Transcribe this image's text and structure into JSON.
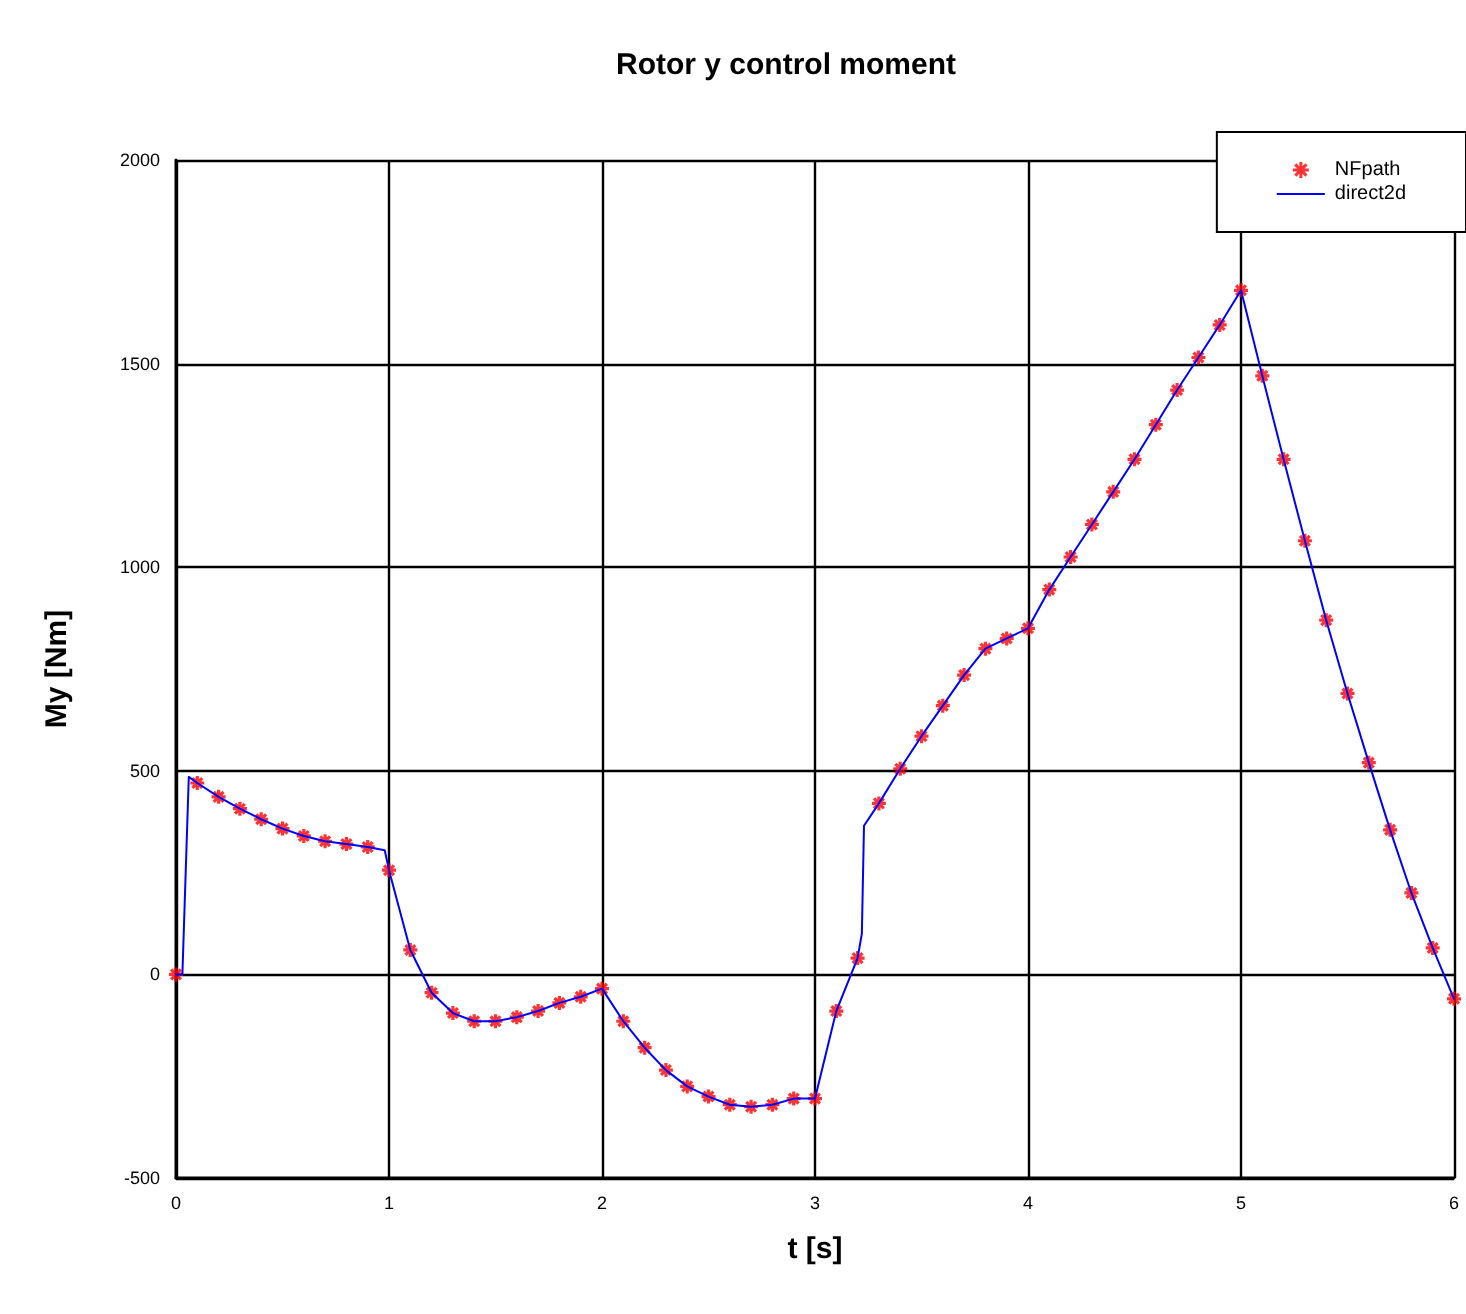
{
  "chart_data": {
    "type": "line",
    "title": "Rotor y control moment",
    "xlabel": "t [s]",
    "ylabel": "My [Nm]",
    "xlim": [
      0,
      6
    ],
    "xticks": [
      0,
      1,
      2,
      3,
      4,
      5,
      6
    ],
    "ylim": [
      -500,
      2000
    ],
    "yticks": [
      -500,
      0,
      500,
      1000,
      1500,
      2000
    ],
    "grid": true,
    "legend": "top right",
    "series": [
      {
        "name": "NFpath",
        "type": "scatter",
        "marker": "cross",
        "color": "#ff0000",
        "x": [
          0,
          0.1,
          0.2,
          0.3,
          0.4,
          0.5,
          0.6,
          0.7,
          0.8,
          0.9,
          1.0,
          1.1,
          1.2,
          1.3,
          1.4,
          1.5,
          1.6,
          1.7,
          1.8,
          1.9,
          2.0,
          2.1,
          2.2,
          2.3,
          2.4,
          2.5,
          2.6,
          2.7,
          2.8,
          2.9,
          3.0,
          3.1,
          3.2,
          3.3,
          3.4,
          3.5,
          3.6,
          3.7,
          3.8,
          3.9,
          4.0,
          4.1,
          4.2,
          4.3,
          4.4,
          4.5,
          4.6,
          4.7,
          4.8,
          4.9,
          5.0,
          5.1,
          5.2,
          5.3,
          5.4,
          5.5,
          5.6,
          5.7,
          5.8,
          5.9,
          6.0
        ],
        "values": [
          0,
          470,
          436,
          407,
          381,
          358,
          340,
          327,
          320,
          313,
          256,
          60,
          -45,
          -95,
          -115,
          -115,
          -105,
          -90,
          -70,
          -55,
          -35,
          -115,
          -180,
          -235,
          -275,
          -300,
          -320,
          -325,
          -320,
          -305,
          -305,
          -90,
          40,
          420,
          505,
          585,
          660,
          735,
          800,
          825,
          850,
          945,
          1025,
          1105,
          1185,
          1265,
          1350,
          1435,
          1515,
          1595,
          1680,
          1470,
          1265,
          1065,
          870,
          690,
          520,
          355,
          200,
          65,
          -60
        ]
      },
      {
        "name": "direct2d",
        "type": "line",
        "marker": "none",
        "line_style": "solid",
        "color": "#0000ff",
        "x": [
          0,
          0.03,
          0.06,
          0.1,
          0.2,
          0.3,
          0.4,
          0.5,
          0.6,
          0.7,
          0.8,
          0.9,
          0.98,
          1.0,
          1.1,
          1.2,
          1.3,
          1.4,
          1.5,
          1.6,
          1.7,
          1.8,
          1.9,
          2.0,
          2.1,
          2.2,
          2.3,
          2.4,
          2.5,
          2.6,
          2.7,
          2.8,
          2.9,
          3.0,
          3.1,
          3.2,
          3.22,
          3.23,
          3.3,
          3.4,
          3.5,
          3.6,
          3.7,
          3.8,
          3.9,
          4.0,
          4.1,
          4.2,
          4.3,
          4.4,
          4.5,
          4.6,
          4.7,
          4.8,
          4.9,
          5.0,
          5.1,
          5.2,
          5.3,
          5.4,
          5.5,
          5.6,
          5.7,
          5.8,
          5.9,
          6.0
        ],
        "values": [
          0,
          0,
          485,
          470,
          436,
          407,
          381,
          358,
          340,
          327,
          320,
          313,
          305,
          256,
          60,
          -45,
          -95,
          -115,
          -115,
          -105,
          -90,
          -70,
          -55,
          -35,
          -115,
          -180,
          -235,
          -275,
          -300,
          -320,
          -325,
          -320,
          -305,
          -305,
          -90,
          40,
          100,
          365,
          420,
          505,
          585,
          660,
          735,
          800,
          825,
          850,
          945,
          1025,
          1105,
          1185,
          1265,
          1350,
          1435,
          1515,
          1595,
          1680,
          1470,
          1265,
          1065,
          870,
          690,
          520,
          355,
          200,
          65,
          -60
        ]
      }
    ]
  }
}
